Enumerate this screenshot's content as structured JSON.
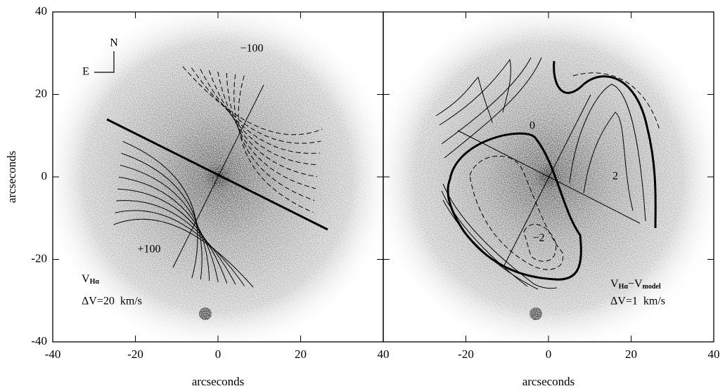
{
  "chart_data": [
    {
      "type": "image",
      "xlabel": "arcseconds",
      "ylabel": "arcseconds",
      "xlim": [
        -40,
        40
      ],
      "ylim": [
        -40,
        40
      ],
      "xticks": [
        -40,
        -20,
        0,
        20,
        40
      ],
      "yticks": [
        -40,
        -20,
        0,
        20,
        40
      ],
      "compass": [
        "N",
        "E"
      ],
      "contour_labels": [
        "−100",
        "+100"
      ],
      "map_label": [
        {
          "text": "V"
        },
        {
          "text": "Hα",
          "sub": true
        }
      ],
      "step_label": "ΔV=20  km/s"
    },
    {
      "type": "image",
      "xlabel": "arcseconds",
      "xlim": [
        -40,
        40
      ],
      "ylim": [
        -40,
        40
      ],
      "xticks": [
        -20,
        0,
        20,
        40
      ],
      "yticks": [
        -40,
        -20,
        0,
        20,
        40
      ],
      "contour_labels": [
        "0",
        "2",
        "−2"
      ],
      "map_label": [
        {
          "text": "V"
        },
        {
          "text": "Hα",
          "sub": true
        },
        {
          "text": "−V"
        },
        {
          "text": "model",
          "sub": true
        }
      ],
      "step_label": "ΔV=1  km/s"
    }
  ]
}
